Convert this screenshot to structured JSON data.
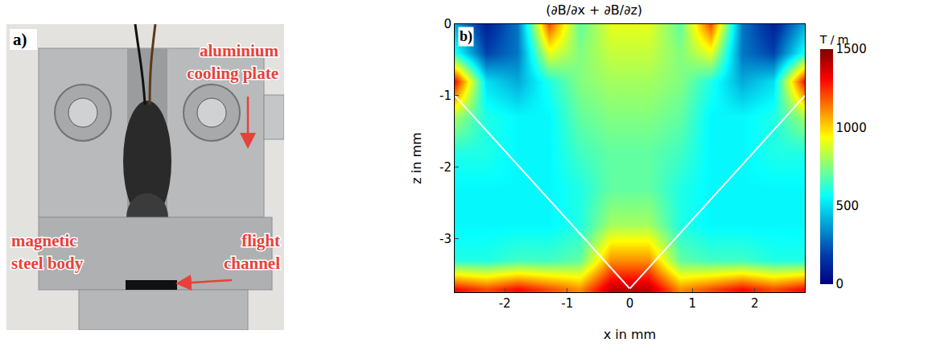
{
  "panel_a": {
    "panel_label": "a)",
    "labels": [
      {
        "lines": [
          "aluminium",
          "cooling plate"
        ]
      },
      {
        "lines": [
          "magnetic",
          "steel body"
        ]
      },
      {
        "lines": [
          "flight",
          "channel"
        ]
      }
    ]
  },
  "chart_data": {
    "type": "heatmap",
    "panel_label": "b)",
    "title": "(∂B/∂x + ∂B/∂z)",
    "x_label": "x in mm",
    "y_label": "z in mm",
    "x": [
      -2.8,
      -2.3,
      -1.8,
      -1.3,
      -0.8,
      -0.3,
      0.3,
      0.8,
      1.3,
      1.8,
      2.3,
      2.8
    ],
    "y": [
      -3.7,
      -3.3,
      -2.8,
      -2.3,
      -1.8,
      -1.3,
      -0.8,
      -0.4,
      0
    ],
    "cells": [
      [
        1300,
        1200,
        1300,
        1200,
        1100,
        1400,
        1400,
        1100,
        1200,
        1300,
        1200,
        1300
      ],
      [
        600,
        600,
        650,
        650,
        700,
        1100,
        1100,
        700,
        650,
        650,
        600,
        600
      ],
      [
        550,
        550,
        550,
        550,
        600,
        800,
        800,
        600,
        550,
        550,
        550,
        550
      ],
      [
        550,
        550,
        550,
        550,
        600,
        700,
        700,
        600,
        550,
        550,
        550,
        550
      ],
      [
        600,
        600,
        550,
        550,
        650,
        700,
        700,
        650,
        550,
        550,
        600,
        600
      ],
      [
        800,
        600,
        550,
        550,
        700,
        750,
        750,
        700,
        550,
        550,
        600,
        800
      ],
      [
        1300,
        500,
        400,
        600,
        750,
        800,
        800,
        750,
        600,
        400,
        500,
        1300
      ],
      [
        600,
        200,
        300,
        900,
        750,
        850,
        850,
        750,
        900,
        300,
        200,
        600
      ],
      [
        400,
        100,
        300,
        1200,
        700,
        900,
        900,
        700,
        1200,
        300,
        100,
        400
      ]
    ],
    "xlim": [
      -2.8,
      2.8
    ],
    "ylim": [
      -3.75,
      0
    ],
    "xticks": [
      -2,
      -1,
      0,
      1,
      2
    ],
    "yticks": [
      -3,
      -2,
      -1,
      0
    ],
    "colorbar": {
      "title": "T / m",
      "range": [
        0,
        1500
      ],
      "ticks": [
        0,
        500,
        1000,
        1500
      ]
    },
    "overlay_line": {
      "x": [
        -2.8,
        0,
        2.8
      ],
      "y": [
        -1,
        -3.7,
        -1
      ],
      "color": "#ffffff"
    }
  }
}
